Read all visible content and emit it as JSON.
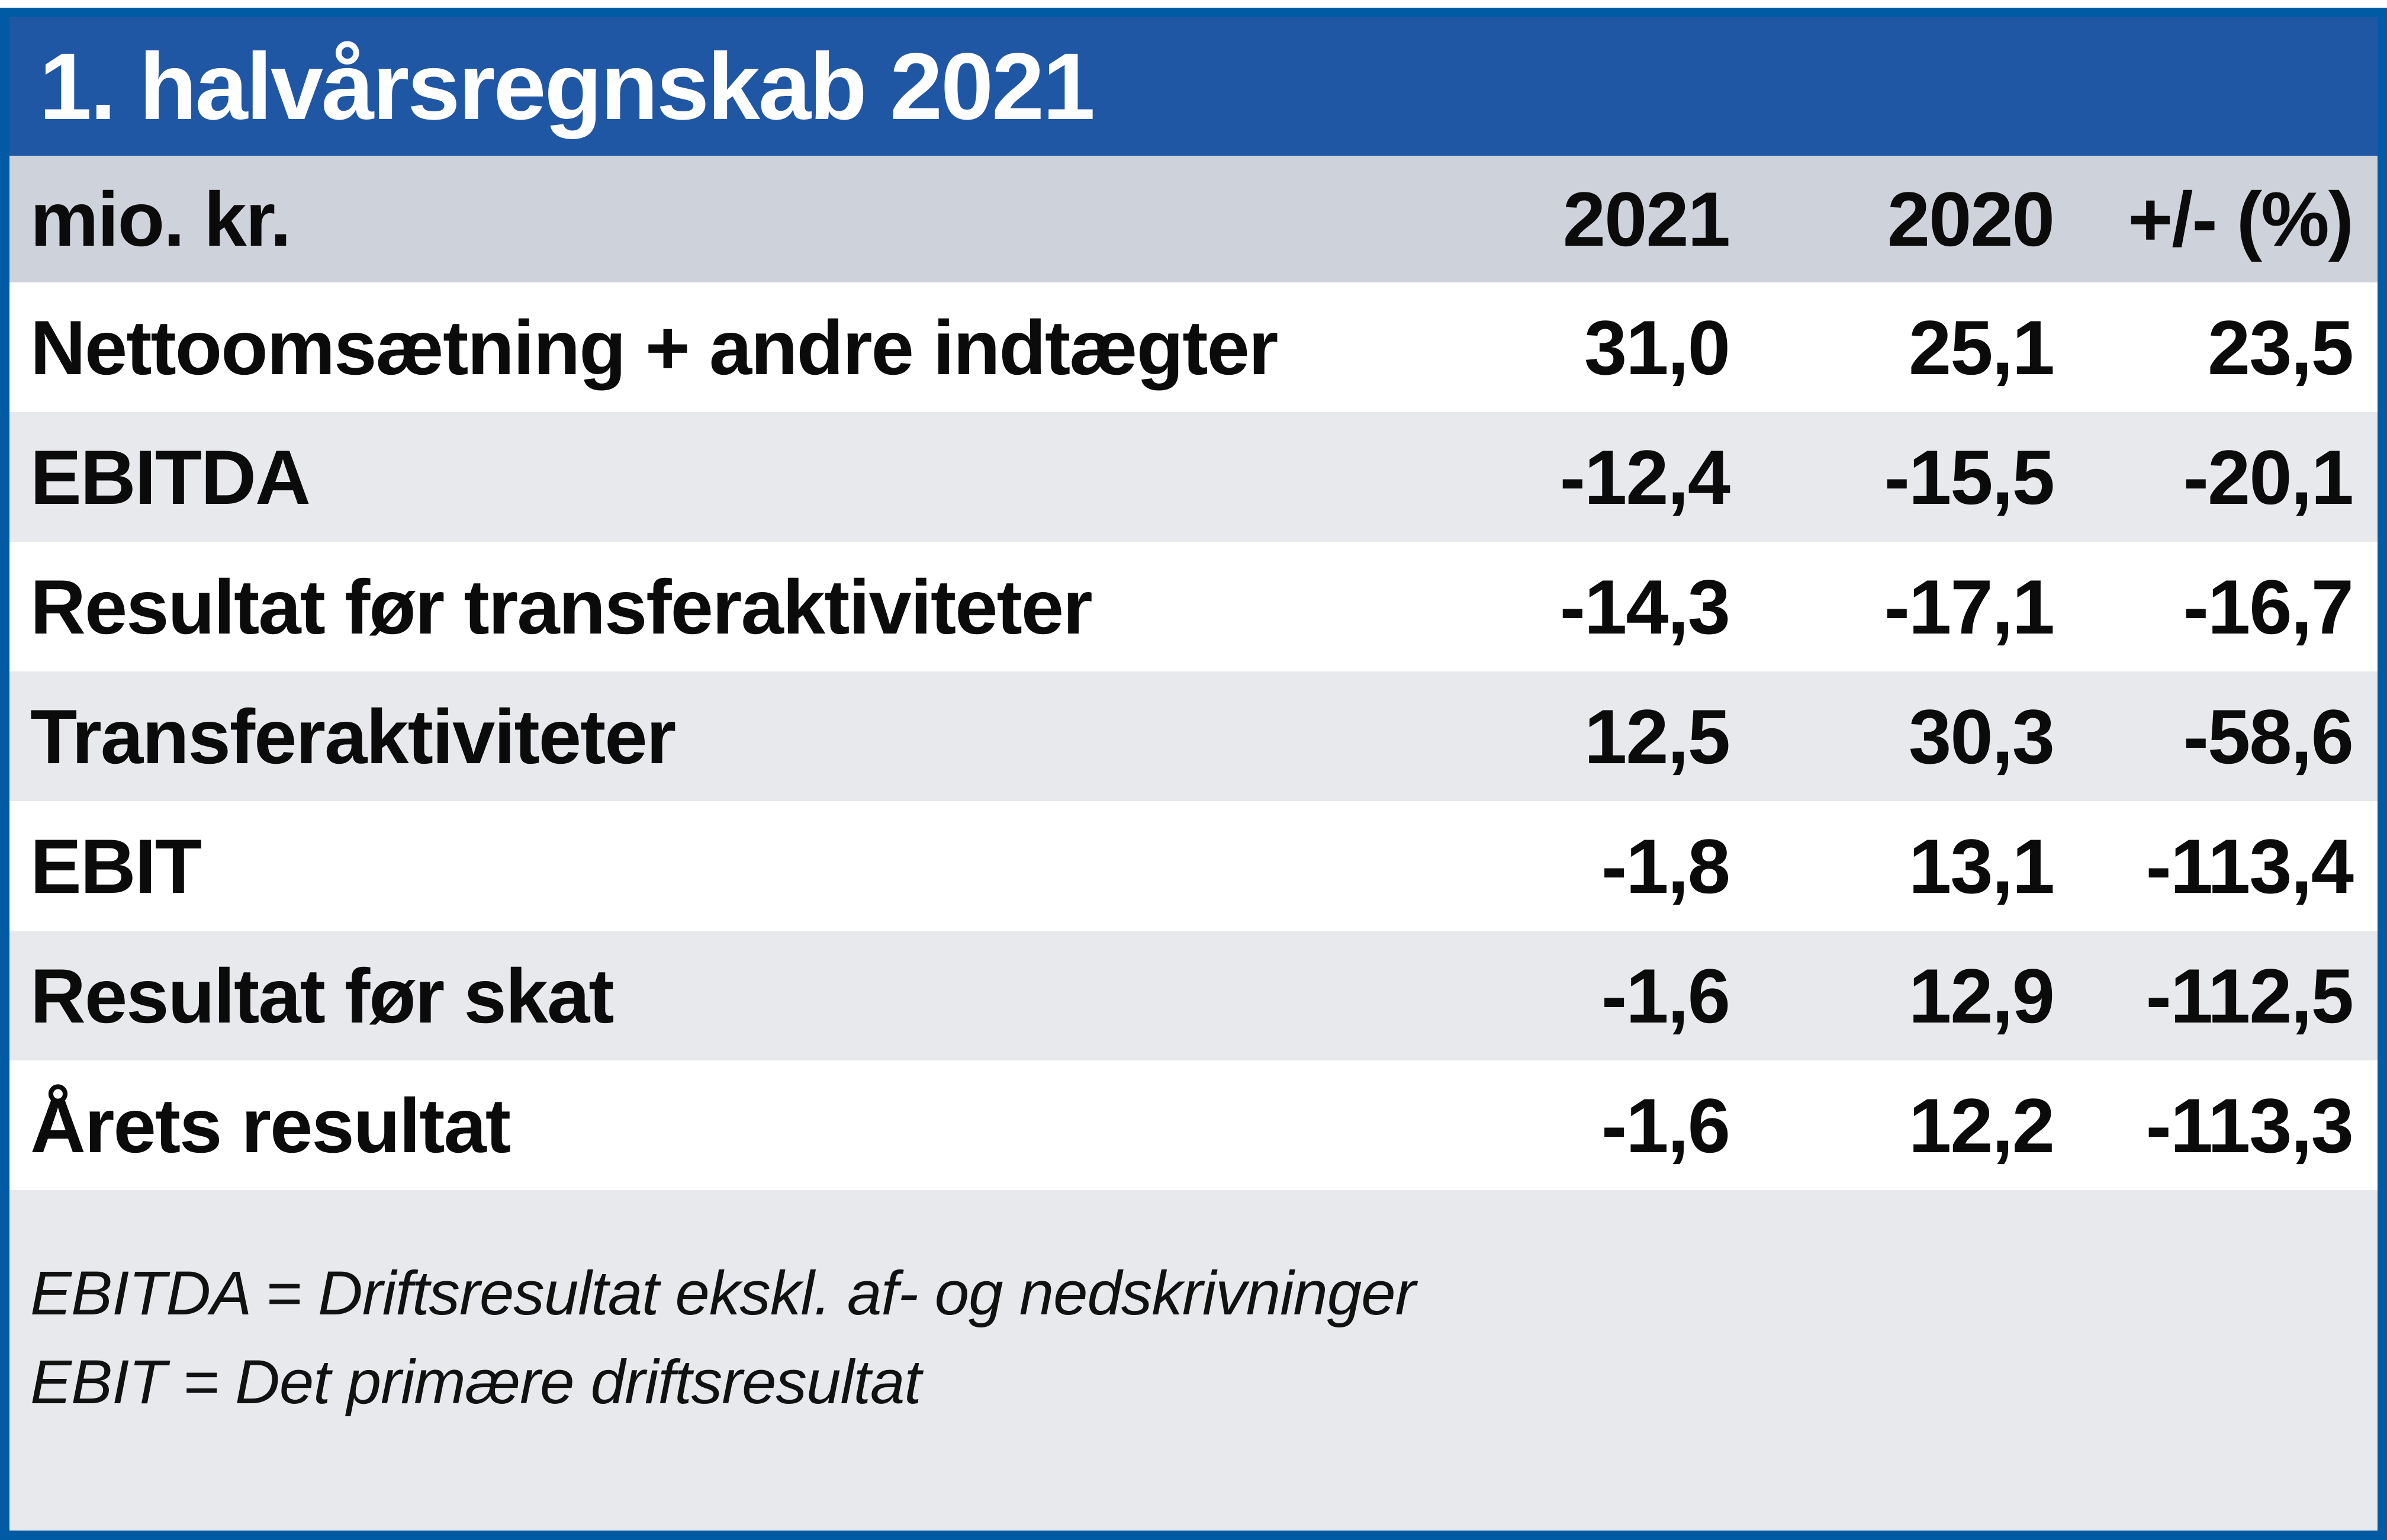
{
  "title": "1. halvårsregnskab 2021",
  "colors": {
    "frame_border": "#005BA4",
    "title_bar": "#2057A5",
    "title_text": "#FFFFFF",
    "header_row_bg": "#CED2DA",
    "alt_row_bg": "#E7E9EC",
    "row_bg": "#FFFFFF",
    "footer_bg": "#E7E9EC",
    "body_text": "#0B0B0B"
  },
  "table": {
    "unit_label": "mio. kr.",
    "columns": [
      "2021",
      "2020",
      "+/- (%)"
    ],
    "rows": [
      {
        "label": "Nettoomsætning + andre indtægter",
        "y2021": "31,0",
        "y2020": "25,1",
        "pct": "23,5"
      },
      {
        "label": "EBITDA",
        "y2021": "-12,4",
        "y2020": "-15,5",
        "pct": "-20,1"
      },
      {
        "label": "Resultat før transferaktiviteter",
        "y2021": "-14,3",
        "y2020": "-17,1",
        "pct": "-16,7"
      },
      {
        "label": "Transferaktiviteter",
        "y2021": "12,5",
        "y2020": "30,3",
        "pct": "-58,6"
      },
      {
        "label": "EBIT",
        "y2021": "-1,8",
        "y2020": "13,1",
        "pct": "-113,4"
      },
      {
        "label": "Resultat før skat",
        "y2021": "-1,6",
        "y2020": "12,9",
        "pct": "-112,5"
      },
      {
        "label": "Årets resultat",
        "y2021": "-1,6",
        "y2020": "12,2",
        "pct": "-113,3"
      }
    ]
  },
  "footnotes": [
    "EBITDA = Driftsresultat ekskl. af- og nedskrivninger",
    "EBIT = Det primære driftsresultat"
  ]
}
